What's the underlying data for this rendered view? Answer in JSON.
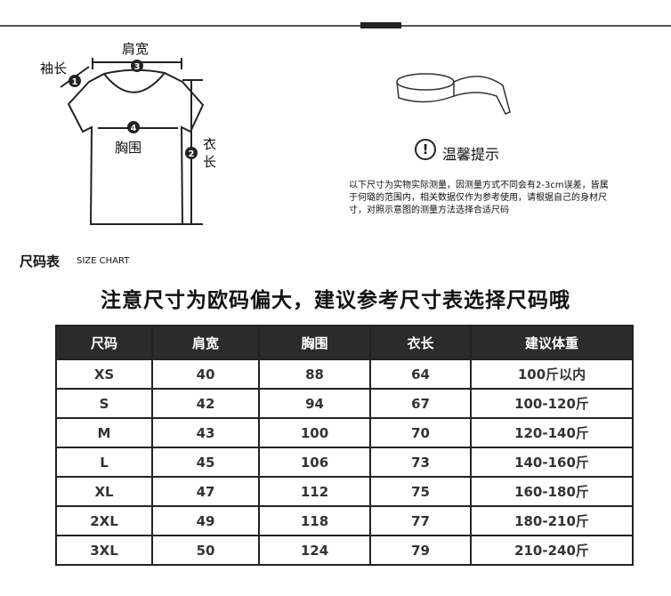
{
  "diagram": {
    "sleeve": "袖长",
    "shoulder": "肩宽",
    "chest": "胸围",
    "length_chars": [
      "衣",
      "长"
    ],
    "markers": [
      "1",
      "2",
      "3",
      "4"
    ]
  },
  "tip": {
    "title": "温馨提示",
    "icon": "exclamation-circle-icon",
    "notice": "以下尺寸为实物实际测量，因测量方式不同会有2-3cm误差，皆属于何璐的范围内，相关数据仅作为参考使用，请根据自己的身材尺寸，对照示意图的测量方法选择合适尺码"
  },
  "section": {
    "title": "尺码表",
    "subtitle": "SIZE CHART"
  },
  "headline": "注意尺寸为欧码偏大，建议参考尺寸表选择尺码哦",
  "table": {
    "headers": [
      "尺码",
      "肩宽",
      "胸围",
      "衣长",
      "建议体重"
    ],
    "rows": [
      [
        "XS",
        "40",
        "88",
        "64",
        "100斤以内"
      ],
      [
        "S",
        "42",
        "94",
        "67",
        "100-120斤"
      ],
      [
        "M",
        "43",
        "100",
        "70",
        "120-140斤"
      ],
      [
        "L",
        "45",
        "106",
        "73",
        "140-160斤"
      ],
      [
        "XL",
        "47",
        "112",
        "75",
        "160-180斤"
      ],
      [
        "2XL",
        "49",
        "118",
        "77",
        "180-210斤"
      ],
      [
        "3XL",
        "50",
        "124",
        "79",
        "210-240斤"
      ]
    ]
  }
}
